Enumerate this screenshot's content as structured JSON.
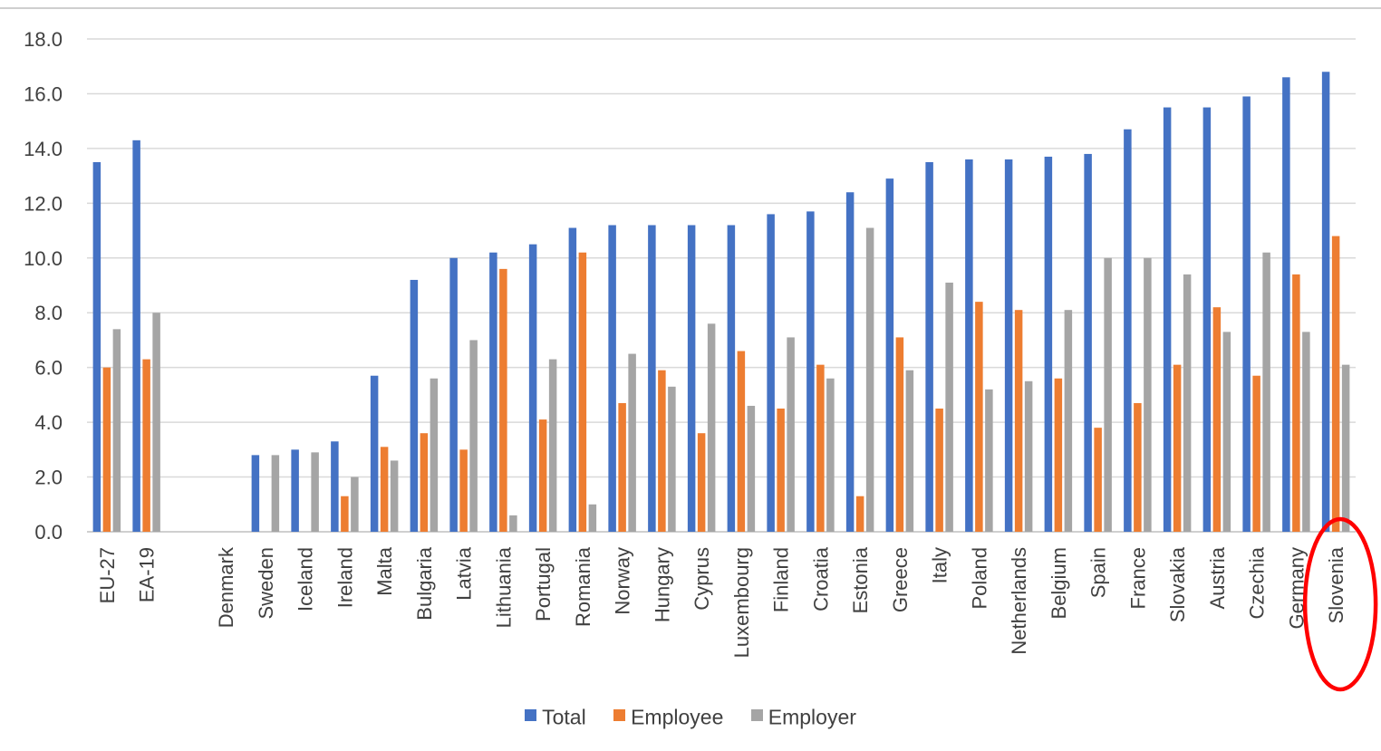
{
  "chart_data": {
    "type": "bar",
    "ylim": [
      0,
      18
    ],
    "yticks": [
      "0.0",
      "2.0",
      "4.0",
      "6.0",
      "8.0",
      "10.0",
      "12.0",
      "14.0",
      "16.0",
      "18.0"
    ],
    "grid": true,
    "legend_position": "bottom",
    "categories": [
      "EU-27",
      "EA-19",
      "",
      "Denmark",
      "Sweden",
      "Iceland",
      "Ireland",
      "Malta",
      "Bulgaria",
      "Latvia",
      "Lithuania",
      "Portugal",
      "Romania",
      "Norway",
      "Hungary",
      "Cyprus",
      "Luxembourg",
      "Finland",
      "Croatia",
      "Estonia",
      "Greece",
      "Italy",
      "Poland",
      "Netherlands",
      "Belgium",
      "Spain",
      "France",
      "Slovakia",
      "Austria",
      "Czechia",
      "Germany",
      "Slovenia"
    ],
    "series": [
      {
        "name": "Total",
        "color": "#4472C4",
        "values": [
          13.5,
          14.3,
          null,
          0.0,
          2.8,
          3.0,
          3.3,
          5.7,
          9.2,
          10.0,
          10.2,
          10.5,
          11.1,
          11.2,
          11.2,
          11.2,
          11.2,
          11.6,
          11.7,
          12.4,
          12.9,
          13.5,
          13.6,
          13.6,
          13.7,
          13.8,
          14.7,
          15.5,
          15.5,
          15.9,
          16.6,
          16.8
        ]
      },
      {
        "name": "Employee",
        "color": "#ED7D31",
        "values": [
          6.0,
          6.3,
          null,
          0.0,
          0.0,
          0.0,
          1.3,
          3.1,
          3.6,
          3.0,
          9.6,
          4.1,
          10.2,
          4.7,
          5.9,
          3.6,
          6.6,
          4.5,
          6.1,
          1.3,
          7.1,
          4.5,
          8.4,
          8.1,
          5.6,
          3.8,
          4.7,
          6.1,
          8.2,
          5.7,
          9.4,
          10.8
        ]
      },
      {
        "name": "Employer",
        "color": "#A5A5A5",
        "values": [
          7.4,
          8.0,
          null,
          0.0,
          2.8,
          2.9,
          2.0,
          2.6,
          5.6,
          7.0,
          0.6,
          6.3,
          1.0,
          6.5,
          5.3,
          7.6,
          4.6,
          7.1,
          5.6,
          11.1,
          5.9,
          9.1,
          5.2,
          5.5,
          8.1,
          10.0,
          10.0,
          9.4,
          7.3,
          10.2,
          7.3,
          6.1
        ]
      }
    ],
    "highlight": {
      "category": "Slovenia",
      "shape": "ellipse",
      "color": "#FF0000"
    }
  },
  "colors": {
    "gridline": "#D9D9D9",
    "axis": "#BFBFBF",
    "text": "#404040",
    "highlight": "#FF0000"
  }
}
